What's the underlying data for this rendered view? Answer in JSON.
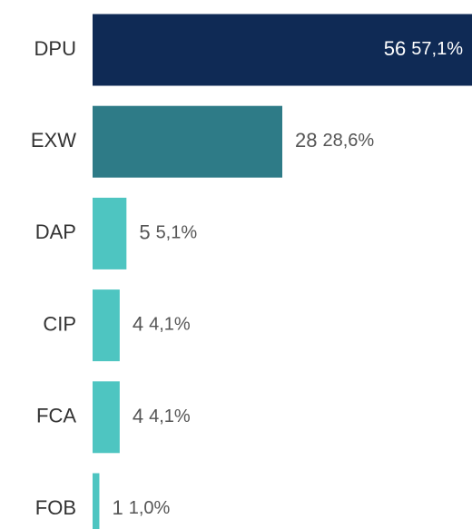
{
  "chart_data": {
    "type": "bar",
    "orientation": "horizontal",
    "categories": [
      "DPU",
      "EXW",
      "DAP",
      "CIP",
      "FCA",
      "FOB"
    ],
    "values": [
      56,
      28,
      5,
      4,
      4,
      1
    ],
    "shares": [
      57.1,
      28.6,
      5.1,
      4.1,
      4.1,
      1.0
    ],
    "share_labels": [
      "57,1%",
      "28,6%",
      "5,1%",
      "4,1%",
      "4,1%",
      "1,0%"
    ],
    "colors": [
      "#0f2a55",
      "#2e7b87",
      "#4ec5c1",
      "#4ec5c1",
      "#4ec5c1",
      "#4ec5c1"
    ],
    "xlim": [
      0,
      56
    ]
  }
}
